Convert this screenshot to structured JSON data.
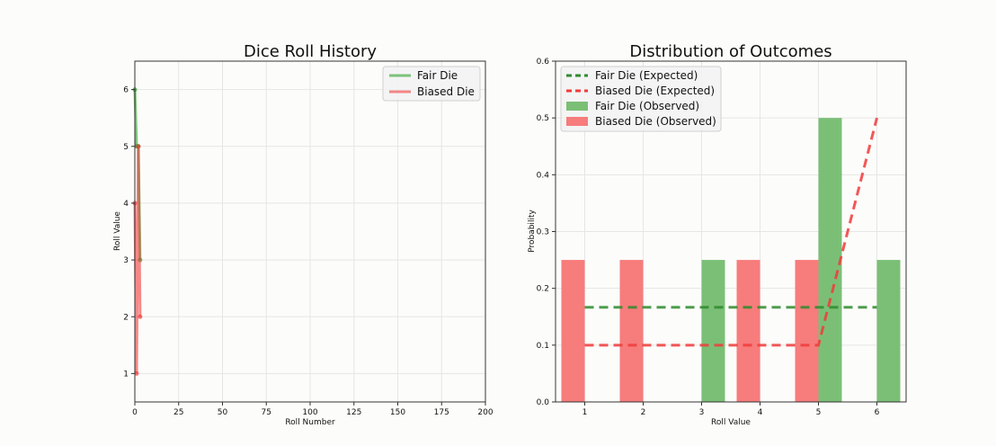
{
  "chart_data": [
    {
      "type": "line",
      "title": "Dice Roll History",
      "xlabel": "Roll Number",
      "ylabel": "Roll Value",
      "xlim": [
        0,
        200
      ],
      "ylim": [
        0.5,
        6.5
      ],
      "xticks": [
        0,
        25,
        50,
        75,
        100,
        125,
        150,
        175,
        200
      ],
      "yticks": [
        1,
        2,
        3,
        4,
        5,
        6
      ],
      "grid": true,
      "legend": "top-right",
      "series": [
        {
          "name": "Fair Die",
          "color": "#2ca02c",
          "x": [
            0,
            1,
            2,
            3
          ],
          "y": [
            6,
            5,
            5,
            3
          ]
        },
        {
          "name": "Biased Die",
          "color": "#f03b3b",
          "x": [
            0,
            1,
            2,
            3
          ],
          "y": [
            4,
            1,
            5,
            2
          ]
        }
      ]
    },
    {
      "type": "bar",
      "title": "Distribution of Outcomes",
      "xlabel": "Roll Value",
      "ylabel": "Probability",
      "xlim": [
        0.5,
        6.5
      ],
      "ylim": [
        0,
        0.6
      ],
      "xticks": [
        1,
        2,
        3,
        4,
        5,
        6
      ],
      "yticks": [
        "0.0",
        "0.1",
        "0.2",
        "0.3",
        "0.4",
        "0.5",
        "0.6"
      ],
      "grid": true,
      "legend": "top-left",
      "lines": [
        {
          "name": "Fair Die (Expected)",
          "color": "#2e8b2e",
          "x": [
            1,
            2,
            3,
            4,
            5,
            6
          ],
          "y": [
            0.1667,
            0.1667,
            0.1667,
            0.1667,
            0.1667,
            0.1667
          ]
        },
        {
          "name": "Biased Die (Expected)",
          "color": "#f03b3b",
          "x": [
            1,
            2,
            3,
            4,
            5,
            6
          ],
          "y": [
            0.1,
            0.1,
            0.1,
            0.1,
            0.1,
            0.5
          ]
        }
      ],
      "bars": [
        {
          "name": "Fair Die (Observed)",
          "color": "#7bbf76",
          "offset": 0.2,
          "x": [
            1,
            2,
            3,
            4,
            5,
            6
          ],
          "y": [
            0,
            0,
            0.25,
            0,
            0.5,
            0.25
          ]
        },
        {
          "name": "Biased Die (Observed)",
          "color": "#f77c7c",
          "offset": -0.2,
          "x": [
            1,
            2,
            3,
            4,
            5,
            6
          ],
          "y": [
            0.25,
            0.25,
            0,
            0.25,
            0.25,
            0
          ]
        }
      ]
    }
  ]
}
